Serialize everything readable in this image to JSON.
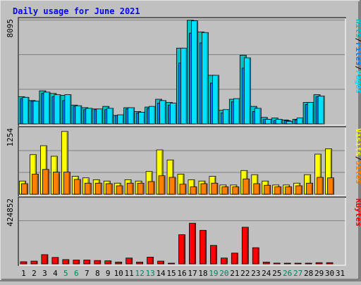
{
  "chart_data": {
    "type": "bar",
    "title": "Daily usage for June 2021",
    "categories": [
      "1",
      "2",
      "3",
      "4",
      "5",
      "6",
      "7",
      "8",
      "9",
      "10",
      "11",
      "12",
      "13",
      "14",
      "15",
      "16",
      "17",
      "18",
      "19",
      "20",
      "21",
      "22",
      "23",
      "24",
      "25",
      "26",
      "27",
      "28",
      "29",
      "30",
      "31"
    ],
    "weekend_days": [
      "5",
      "6",
      "12",
      "13",
      "19",
      "20",
      "26",
      "27"
    ],
    "panels": [
      {
        "id": "top",
        "ymax_label": "8095",
        "ylim": [
          0,
          8095
        ],
        "ylabel_parts": [
          "Pages",
          "Files",
          "Hits"
        ],
        "series": [
          {
            "name": "Hits",
            "color": "#00c0c0",
            "values": [
              2100,
              1800,
              2550,
              2350,
              2200,
              1450,
              1250,
              1150,
              1350,
              650,
              1250,
              950,
              1300,
              1900,
              1650,
              5850,
              8000,
              7100,
              3750,
              1050,
              1900,
              5300,
              1350,
              500,
              450,
              300,
              350,
              1650,
              2250,
              0,
              0
            ]
          },
          {
            "name": "Files",
            "color": "#0080ff",
            "values": [
              1950,
              1750,
              2350,
              2100,
              1800,
              1350,
              1100,
              1100,
              1100,
              650,
              1150,
              850,
              1200,
              1600,
              1450,
              4700,
              7000,
              6250,
              3150,
              850,
              1700,
              4300,
              950,
              350,
              250,
              250,
              300,
              1500,
              2100,
              0,
              0
            ]
          },
          {
            "name": "Pages",
            "color": "#00e0ff",
            "values": [
              2050,
              1750,
              2450,
              2250,
              2250,
              1400,
              1200,
              1150,
              1200,
              700,
              1250,
              900,
              1350,
              1800,
              1600,
              5850,
              7950,
              7050,
              3750,
              1100,
              1950,
              5100,
              1200,
              350,
              350,
              200,
              450,
              1650,
              2150,
              0,
              0
            ]
          }
        ]
      },
      {
        "id": "mid",
        "ymax_label": "1254",
        "ylim": [
          0,
          1254
        ],
        "ylabel_parts": [
          "Sites",
          "Visits"
        ],
        "series": [
          {
            "name": "Visits",
            "color": "#ffff00",
            "values": [
              250,
              750,
              920,
              720,
              1190,
              340,
              310,
              275,
              250,
              210,
              275,
              250,
              430,
              840,
              650,
              380,
              275,
              250,
              340,
              175,
              175,
              450,
              370,
              250,
              175,
              175,
              210,
              370,
              760,
              860,
              0
            ]
          },
          {
            "name": "Sites",
            "color": "#ff8000",
            "values": [
              200,
              380,
              470,
              420,
              420,
              280,
              210,
              210,
              200,
              160,
              210,
              210,
              240,
              350,
              320,
              190,
              140,
              200,
              210,
              140,
              140,
              290,
              200,
              170,
              140,
              140,
              160,
              210,
              320,
              310,
              0
            ]
          }
        ]
      },
      {
        "id": "bot",
        "ymax_label": "424852",
        "ylim": [
          0,
          424852
        ],
        "ylabel_parts": [
          "KBytes"
        ],
        "series": [
          {
            "name": "KBytes",
            "color": "#ff0000",
            "values": [
              14000,
              18000,
              60000,
              42000,
              28000,
              25000,
              25000,
              22000,
              20000,
              12000,
              38000,
              12000,
              44000,
              18000,
              4000,
              190000,
              264000,
              218000,
              120000,
              38000,
              70000,
              238000,
              105000,
              12000,
              5000,
              4000,
              2000,
              2000,
              8000,
              8000,
              0
            ]
          }
        ]
      }
    ],
    "colors": {
      "title": "#0000ff",
      "weekend_label": "#00805c",
      "weekday_label": "#000000",
      "plot_bg": "#c0c0c0",
      "grid": "#808080",
      "label_separator": "#000000"
    }
  }
}
